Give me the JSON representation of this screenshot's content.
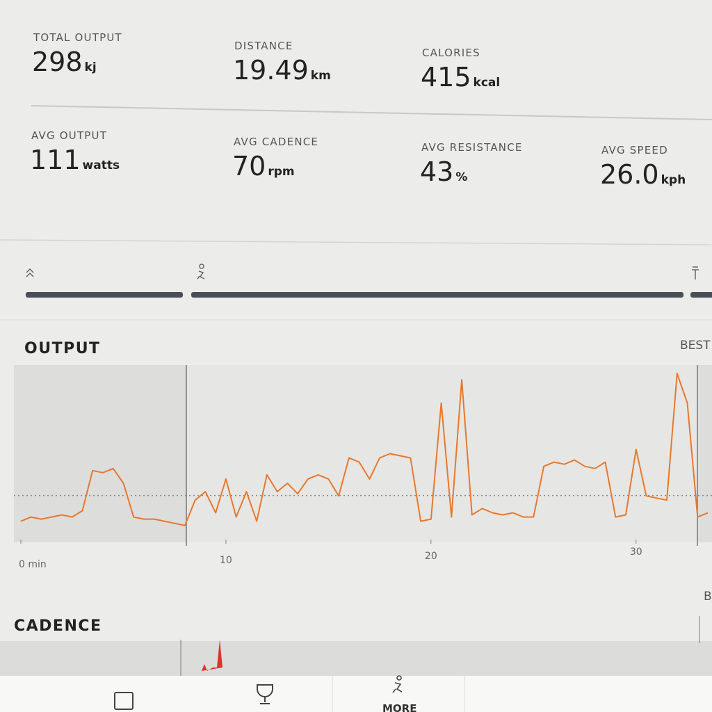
{
  "stats": [
    {
      "label": "TOTAL OUTPUT",
      "value": "298",
      "unit": "kj"
    },
    {
      "label": "DISTANCE",
      "value": "19.49",
      "unit": "km"
    },
    {
      "label": "CALORIES",
      "value": "415",
      "unit": "kcal"
    },
    {
      "label": "AVG OUTPUT",
      "value": "111",
      "unit": "watts"
    },
    {
      "label": "AVG CADENCE",
      "value": "70",
      "unit": "rpm"
    },
    {
      "label": "AVG RESISTANCE",
      "value": "43",
      "unit": "%"
    },
    {
      "label": "AVG SPEED",
      "value": "26.0",
      "unit": "kph"
    }
  ],
  "output_chart": {
    "type": "line",
    "title": "OUTPUT",
    "best_label": "BEST",
    "color": "#e8782c",
    "x": [
      0,
      0.5,
      1,
      1.5,
      2,
      2.5,
      3,
      3.5,
      4,
      4.5,
      5,
      5.5,
      6,
      6.5,
      7,
      7.5,
      8,
      8.5,
      9,
      9.5,
      10,
      10.5,
      11,
      11.5,
      12,
      12.5,
      13,
      13.5,
      14,
      14.5,
      15,
      15.5,
      16,
      16.5,
      17,
      17.5,
      18,
      18.5,
      19,
      19.5,
      20,
      20.5,
      21,
      21.5,
      22,
      22.5,
      23,
      23.5,
      24,
      24.5,
      25,
      25.5,
      26,
      26.5,
      27,
      27.5,
      28,
      28.5,
      29,
      29.5,
      30,
      30.5,
      31,
      31.5,
      32,
      32.5,
      33,
      33.5
    ],
    "values": [
      50,
      60,
      55,
      60,
      65,
      60,
      75,
      170,
      165,
      175,
      140,
      60,
      55,
      55,
      50,
      45,
      40,
      100,
      120,
      70,
      150,
      60,
      120,
      50,
      160,
      120,
      140,
      115,
      150,
      160,
      150,
      110,
      200,
      190,
      150,
      200,
      210,
      205,
      200,
      50,
      55,
      330,
      60,
      385,
      65,
      80,
      70,
      65,
      70,
      60,
      60,
      180,
      190,
      185,
      195,
      180,
      175,
      190,
      60,
      65,
      220,
      110,
      105,
      100,
      400,
      330,
      60,
      70
    ],
    "xlim": [
      0,
      33.5
    ],
    "ylim": [
      0,
      420
    ],
    "xticks": [
      {
        "value": 0,
        "label": "0 min"
      },
      10,
      20,
      30
    ]
  },
  "cadence_chart": {
    "title": "CADENCE",
    "best_label": "B"
  },
  "nav": {
    "more": "MORE"
  }
}
